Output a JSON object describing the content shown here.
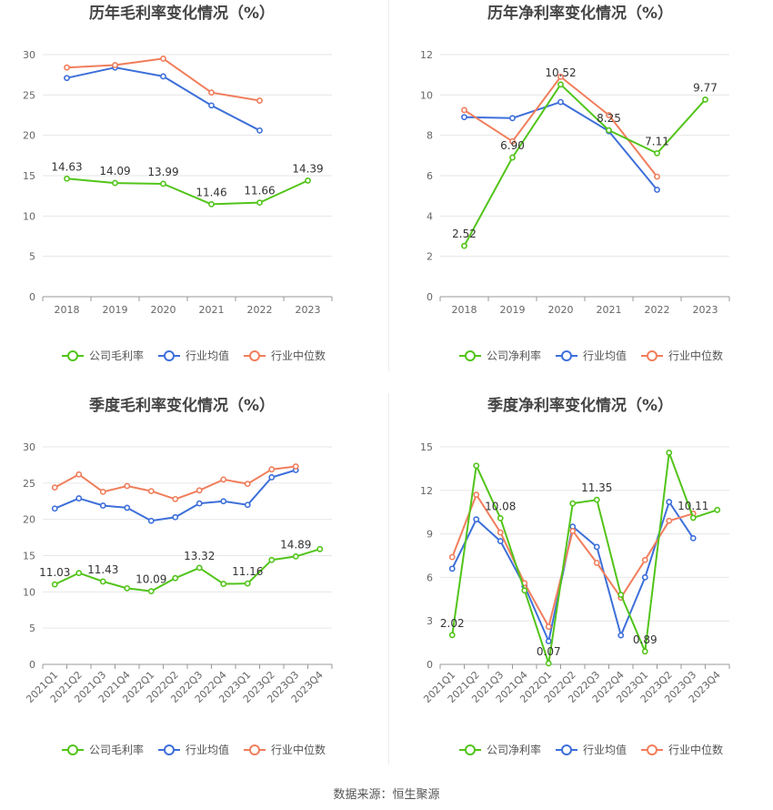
{
  "footer": {
    "source": "数据来源：恒生聚源"
  },
  "colors": {
    "company": "#52c41a",
    "industry_avg": "#3d6fd9",
    "industry_median": "#f07e5c",
    "grid": "#e6e6e6",
    "axis": "#999999",
    "text": "#666666",
    "title": "#444444"
  },
  "chart_data": [
    {
      "type": "line",
      "title": "历年毛利率变化情况（%）",
      "categories": [
        "2018",
        "2019",
        "2020",
        "2021",
        "2022",
        "2023"
      ],
      "ylim": [
        0,
        30
      ],
      "yticks": [
        0,
        5,
        10,
        15,
        20,
        25,
        30
      ],
      "grid": true,
      "legend_position": "bottom",
      "series": [
        {
          "name": "公司毛利率",
          "color_key": "company",
          "values": [
            14.63,
            14.09,
            13.99,
            11.46,
            11.66,
            14.39
          ],
          "labels": [
            "14.63",
            "14.09",
            "13.99",
            "11.46",
            "11.66",
            "14.39"
          ]
        },
        {
          "name": "行业均值",
          "color_key": "industry_avg",
          "values": [
            27.1,
            28.4,
            27.3,
            23.7,
            20.6,
            null
          ],
          "labels": []
        },
        {
          "name": "行业中位数",
          "color_key": "industry_median",
          "values": [
            28.4,
            28.7,
            29.5,
            25.3,
            24.3,
            null
          ],
          "labels": []
        }
      ]
    },
    {
      "type": "line",
      "title": "历年净利率变化情况（%）",
      "categories": [
        "2018",
        "2019",
        "2020",
        "2021",
        "2022",
        "2023"
      ],
      "ylim": [
        0,
        12
      ],
      "yticks": [
        0,
        2,
        4,
        6,
        8,
        10,
        12
      ],
      "grid": true,
      "legend_position": "bottom",
      "series": [
        {
          "name": "公司净利率",
          "color_key": "company",
          "values": [
            2.52,
            6.9,
            10.52,
            8.25,
            7.11,
            9.77
          ],
          "labels": [
            "2.52",
            "6.90",
            "10.52",
            "8.25",
            "7.11",
            "9.77"
          ]
        },
        {
          "name": "行业均值",
          "color_key": "industry_avg",
          "values": [
            8.9,
            8.85,
            9.65,
            8.2,
            5.3,
            null
          ],
          "labels": []
        },
        {
          "name": "行业中位数",
          "color_key": "industry_median",
          "values": [
            9.25,
            7.7,
            10.9,
            9.0,
            5.95,
            null
          ],
          "labels": []
        }
      ]
    },
    {
      "type": "line",
      "title": "季度毛利率变化情况（%）",
      "categories": [
        "2021Q1",
        "2021Q2",
        "2021Q3",
        "2021Q4",
        "2022Q1",
        "2022Q2",
        "2022Q3",
        "2022Q4",
        "2023Q1",
        "2023Q2",
        "2023Q3",
        "2023Q4"
      ],
      "ylim": [
        0,
        30
      ],
      "yticks": [
        0,
        5,
        10,
        15,
        20,
        25,
        30
      ],
      "grid": true,
      "legend_position": "bottom",
      "series": [
        {
          "name": "公司毛利率",
          "color_key": "company",
          "values": [
            11.03,
            12.6,
            11.43,
            10.5,
            10.09,
            11.9,
            13.32,
            11.1,
            11.16,
            14.4,
            14.89,
            15.9
          ],
          "labels": [
            "11.03",
            "",
            "11.43",
            "",
            "10.09",
            "",
            "13.32",
            "",
            "11.16",
            "",
            "14.89",
            ""
          ]
        },
        {
          "name": "行业均值",
          "color_key": "industry_avg",
          "values": [
            21.5,
            22.9,
            21.9,
            21.6,
            19.8,
            20.3,
            22.2,
            22.5,
            22.0,
            25.8,
            26.8,
            null
          ],
          "labels": []
        },
        {
          "name": "行业中位数",
          "color_key": "industry_median",
          "values": [
            24.4,
            26.2,
            23.8,
            24.6,
            23.9,
            22.8,
            24.0,
            25.5,
            24.9,
            26.9,
            27.3,
            null
          ],
          "labels": []
        }
      ]
    },
    {
      "type": "line",
      "title": "季度净利率变化情况（%）",
      "categories": [
        "2021Q1",
        "2021Q2",
        "2021Q3",
        "2021Q4",
        "2022Q1",
        "2022Q2",
        "2022Q3",
        "2022Q4",
        "2023Q1",
        "2023Q2",
        "2023Q3",
        "2023Q4"
      ],
      "ylim": [
        0,
        15
      ],
      "yticks": [
        0,
        3,
        6,
        9,
        12,
        15
      ],
      "grid": true,
      "legend_position": "bottom",
      "series": [
        {
          "name": "公司净利率",
          "color_key": "company",
          "values": [
            2.02,
            13.7,
            10.08,
            5.1,
            0.07,
            11.1,
            11.35,
            4.8,
            0.89,
            14.6,
            10.11,
            10.65
          ],
          "labels": [
            "2.02",
            "",
            "10.08",
            "",
            "0.07",
            "",
            "11.35",
            "",
            "0.89",
            "",
            "10.11",
            ""
          ]
        },
        {
          "name": "行业均值",
          "color_key": "industry_avg",
          "values": [
            6.6,
            10.0,
            8.5,
            5.4,
            1.6,
            9.5,
            8.1,
            2.0,
            6.0,
            11.2,
            8.7,
            null
          ],
          "labels": []
        },
        {
          "name": "行业中位数",
          "color_key": "industry_median",
          "values": [
            7.4,
            11.7,
            9.1,
            5.6,
            2.6,
            9.2,
            7.0,
            4.6,
            7.2,
            9.9,
            10.4,
            null
          ],
          "labels": []
        }
      ]
    }
  ]
}
